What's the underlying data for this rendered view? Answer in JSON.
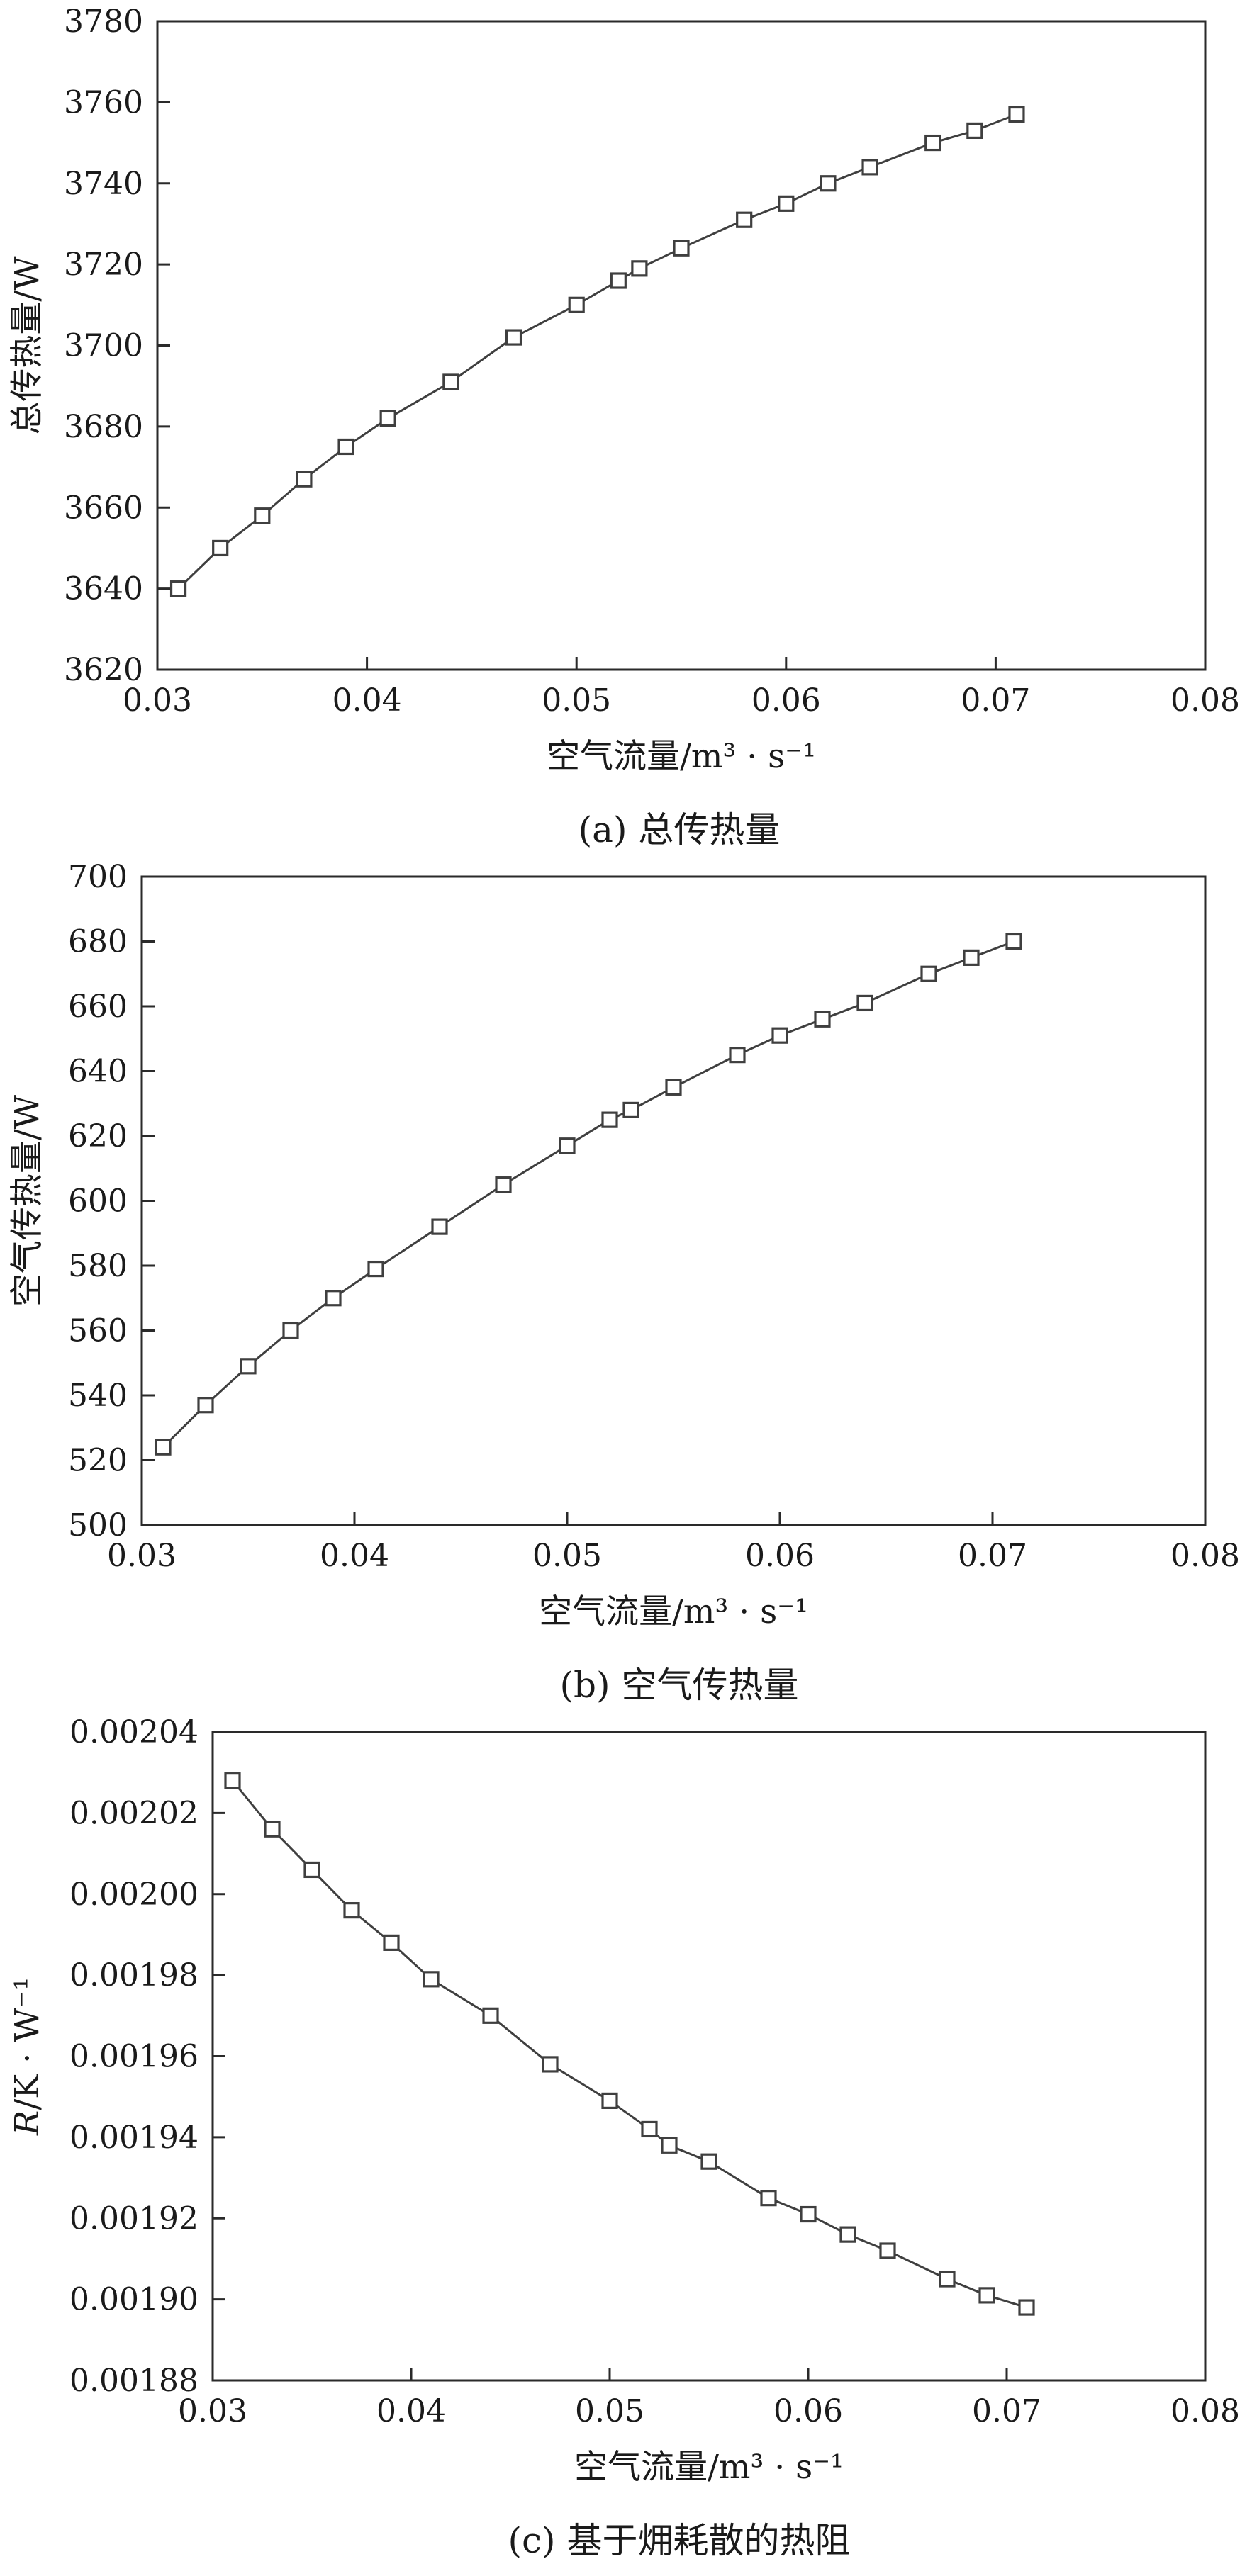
{
  "page": {
    "background": "#ffffff"
  },
  "chart_data": [
    {
      "id": "a",
      "type": "line",
      "marker": "open-square",
      "line_color": "#3f3f3f",
      "axis_color": "#2a2a2a",
      "title": "(a) 总传热量",
      "xlabel": "空气流量/m³ · s⁻¹",
      "ylabel": "总传热量/W",
      "ylabel_italic_first": false,
      "xlim": [
        0.03,
        0.08
      ],
      "ylim": [
        3620,
        3780
      ],
      "xticks": [
        "0.03",
        "0.04",
        "0.05",
        "0.06",
        "0.07",
        "0.08"
      ],
      "yticks": [
        "3620",
        "3640",
        "3660",
        "3680",
        "3700",
        "3720",
        "3740",
        "3760",
        "3780"
      ],
      "x": [
        0.031,
        0.033,
        0.035,
        0.037,
        0.039,
        0.041,
        0.044,
        0.047,
        0.05,
        0.052,
        0.053,
        0.055,
        0.058,
        0.06,
        0.062,
        0.064,
        0.067,
        0.069,
        0.071
      ],
      "y": [
        3640,
        3650,
        3658,
        3667,
        3675,
        3682,
        3691,
        3702,
        3710,
        3716,
        3719,
        3724,
        3731,
        3735,
        3740,
        3744,
        3750,
        3753,
        3757
      ],
      "grid": false,
      "legend": "none"
    },
    {
      "id": "b",
      "type": "line",
      "marker": "open-square",
      "line_color": "#3f3f3f",
      "axis_color": "#2a2a2a",
      "title": "(b) 空气传热量",
      "xlabel": "空气流量/m³ · s⁻¹",
      "ylabel": "空气传热量/W",
      "ylabel_italic_first": false,
      "xlim": [
        0.03,
        0.08
      ],
      "ylim": [
        500,
        700
      ],
      "xticks": [
        "0.03",
        "0.04",
        "0.05",
        "0.06",
        "0.07",
        "0.08"
      ],
      "yticks": [
        "500",
        "520",
        "540",
        "560",
        "580",
        "600",
        "620",
        "640",
        "660",
        "680",
        "700"
      ],
      "x": [
        0.031,
        0.033,
        0.035,
        0.037,
        0.039,
        0.041,
        0.044,
        0.047,
        0.05,
        0.052,
        0.053,
        0.055,
        0.058,
        0.06,
        0.062,
        0.064,
        0.067,
        0.069,
        0.071
      ],
      "y": [
        524,
        537,
        549,
        560,
        570,
        579,
        592,
        605,
        617,
        625,
        628,
        635,
        645,
        651,
        656,
        661,
        670,
        675,
        680
      ],
      "grid": false,
      "legend": "none"
    },
    {
      "id": "c",
      "type": "line",
      "marker": "open-square",
      "line_color": "#3f3f3f",
      "axis_color": "#2a2a2a",
      "title": "(c) 基于㶲耗散的热阻",
      "xlabel": "空气流量/m³ · s⁻¹",
      "ylabel": "R/K · W⁻¹",
      "ylabel_italic_first": true,
      "xlim": [
        0.03,
        0.08
      ],
      "ylim": [
        0.00188,
        0.00204
      ],
      "xticks": [
        "0.03",
        "0.04",
        "0.05",
        "0.06",
        "0.07",
        "0.08"
      ],
      "yticks": [
        "0.00188",
        "0.00190",
        "0.00192",
        "0.00194",
        "0.00196",
        "0.00198",
        "0.00200",
        "0.00202",
        "0.00204"
      ],
      "x": [
        0.031,
        0.033,
        0.035,
        0.037,
        0.039,
        0.041,
        0.044,
        0.047,
        0.05,
        0.052,
        0.053,
        0.055,
        0.058,
        0.06,
        0.062,
        0.064,
        0.067,
        0.069,
        0.071
      ],
      "y": [
        0.002028,
        0.002016,
        0.002006,
        0.001996,
        0.001988,
        0.001979,
        0.00197,
        0.001958,
        0.001949,
        0.001942,
        0.001938,
        0.001934,
        0.001925,
        0.001921,
        0.001916,
        0.001912,
        0.001905,
        0.001901,
        0.001898
      ],
      "grid": false,
      "legend": "none"
    }
  ]
}
